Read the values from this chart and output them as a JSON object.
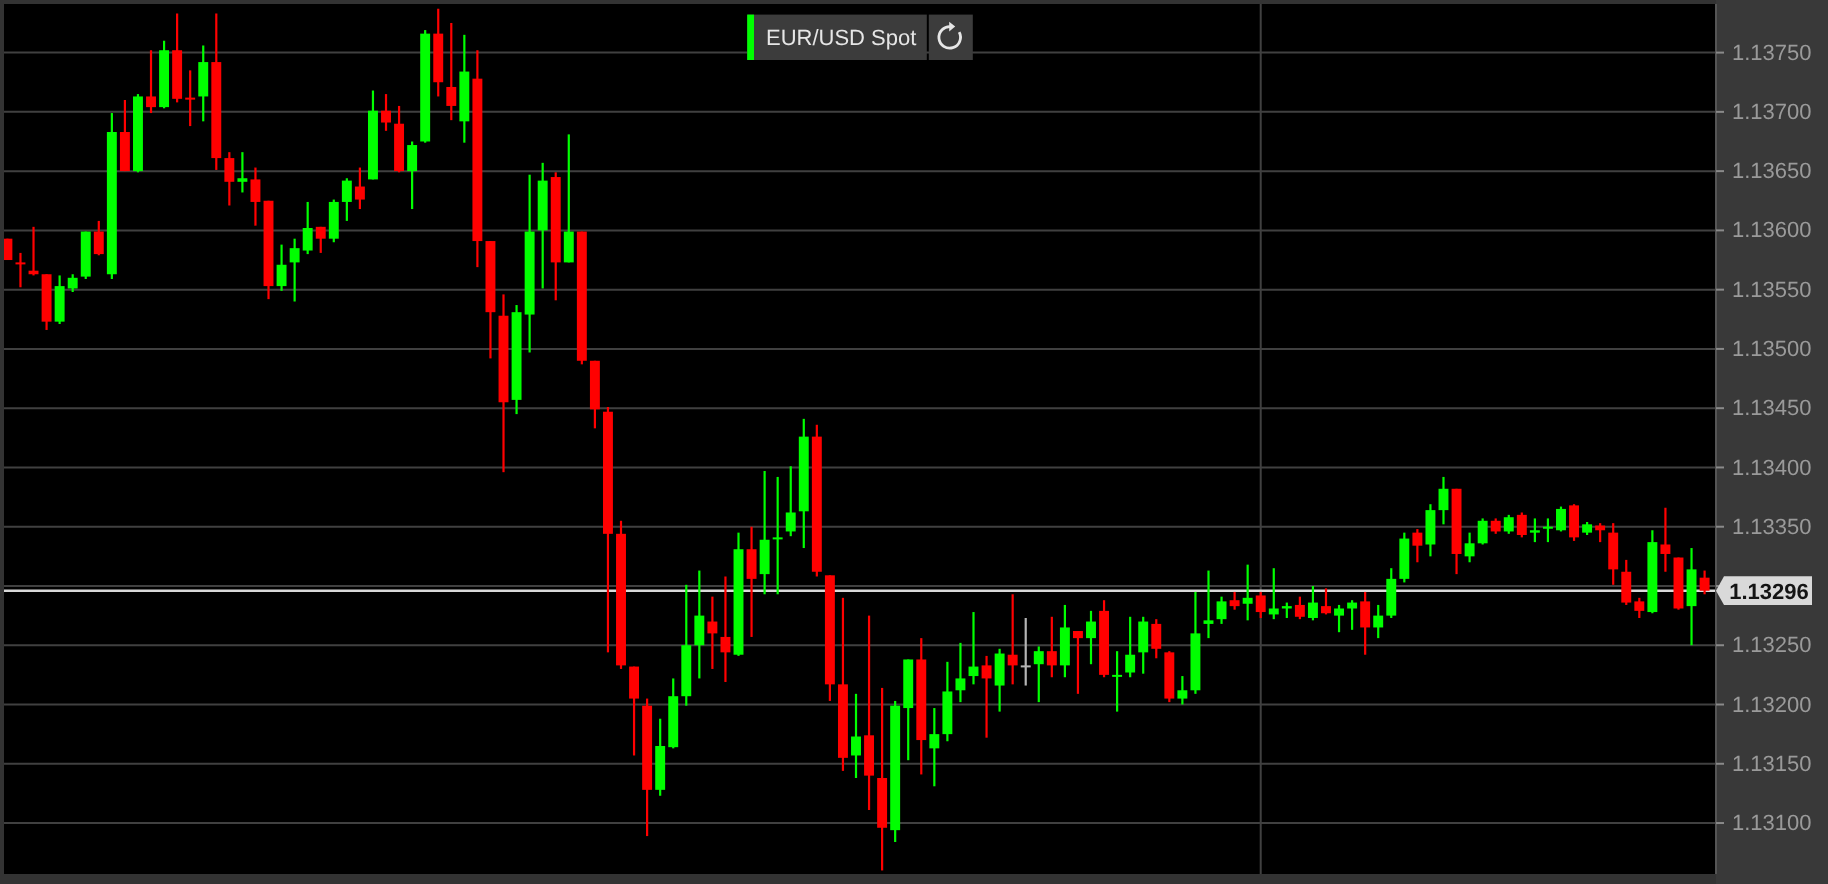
{
  "chart_data": {
    "type": "candlestick",
    "categories": [
      null,
      null,
      null,
      null,
      null,
      null,
      null,
      null,
      null,
      null,
      null,
      null,
      null,
      null,
      null,
      null,
      null,
      null,
      null,
      null,
      null,
      null,
      null,
      null,
      null,
      null,
      null,
      null,
      null,
      null,
      null,
      null,
      null,
      null,
      null,
      null,
      null,
      null,
      null,
      null,
      null,
      null,
      null,
      null,
      null,
      null,
      null,
      null,
      null,
      null,
      null,
      null,
      null,
      null,
      null,
      null,
      null,
      null,
      null,
      null,
      null,
      null,
      null,
      null,
      null,
      null,
      null,
      null,
      null,
      null,
      null,
      null,
      null,
      null,
      null,
      null,
      null,
      null,
      null,
      null,
      null,
      null,
      null,
      null,
      null,
      null,
      null,
      null,
      null,
      null,
      null,
      null,
      null,
      null,
      null,
      null,
      null,
      null,
      null,
      null,
      null,
      null,
      null,
      null,
      null,
      null,
      null,
      null,
      null,
      null,
      null,
      null,
      null,
      null,
      null,
      null,
      null,
      null,
      null,
      null,
      null,
      null,
      null,
      null,
      null,
      null,
      null,
      null,
      null,
      null,
      null
    ],
    "series": [
      {
        "name": "EUR/USD Spot",
        "color": "#00ff00",
        "ohlc": [
          [
            1.13593,
            1.13593,
            1.13575,
            1.13575
          ],
          [
            1.13573,
            1.13581,
            1.13552,
            1.13572
          ],
          [
            1.13566,
            1.13603,
            1.13562,
            1.13563
          ],
          [
            1.13563,
            1.13563,
            1.13516,
            1.13523
          ],
          [
            1.13523,
            1.13562,
            1.13521,
            1.13553
          ],
          [
            1.13551,
            1.13563,
            1.13548,
            1.1356
          ],
          [
            1.13561,
            1.13599,
            1.13559,
            1.13599
          ],
          [
            1.13599,
            1.13608,
            1.13579,
            1.1358
          ],
          [
            1.13563,
            1.13699,
            1.13559,
            1.13683
          ],
          [
            1.13683,
            1.1371,
            1.1365,
            1.1365
          ],
          [
            1.1365,
            1.13715,
            1.13649,
            1.13713
          ],
          [
            1.13713,
            1.13752,
            1.13699,
            1.13704
          ],
          [
            1.13704,
            1.1376,
            1.13703,
            1.13752
          ],
          [
            1.13752,
            1.13783,
            1.13708,
            1.13711
          ],
          [
            1.13712,
            1.13735,
            1.13688,
            1.13711
          ],
          [
            1.13713,
            1.13756,
            1.13692,
            1.13742
          ],
          [
            1.13742,
            1.13783,
            1.13651,
            1.13661
          ],
          [
            1.13661,
            1.13666,
            1.13621,
            1.13641
          ],
          [
            1.13641,
            1.13666,
            1.13632,
            1.13644
          ],
          [
            1.13643,
            1.13653,
            1.13604,
            1.13624
          ],
          [
            1.13625,
            1.13625,
            1.13542,
            1.13553
          ],
          [
            1.13553,
            1.13588,
            1.13549,
            1.13571
          ],
          [
            1.13573,
            1.13593,
            1.1354,
            1.13585
          ],
          [
            1.13583,
            1.13624,
            1.1358,
            1.13602
          ],
          [
            1.13603,
            1.13603,
            1.13581,
            1.13593
          ],
          [
            1.13593,
            1.13626,
            1.1359,
            1.13624
          ],
          [
            1.13624,
            1.13644,
            1.13608,
            1.13642
          ],
          [
            1.13637,
            1.13653,
            1.13618,
            1.13626
          ],
          [
            1.13643,
            1.13718,
            1.13643,
            1.13701
          ],
          [
            1.13701,
            1.13715,
            1.13684,
            1.13691
          ],
          [
            1.1369,
            1.13705,
            1.13649,
            1.1365
          ],
          [
            1.1365,
            1.13675,
            1.13618,
            1.13672
          ],
          [
            1.13675,
            1.13769,
            1.13674,
            1.13766
          ],
          [
            1.13766,
            1.13787,
            1.13713,
            1.13725
          ],
          [
            1.13721,
            1.13775,
            1.13693,
            1.13705
          ],
          [
            1.13692,
            1.13765,
            1.13674,
            1.13734
          ],
          [
            1.13728,
            1.13752,
            1.13569,
            1.13591
          ],
          [
            1.13591,
            1.13591,
            1.13492,
            1.13531
          ],
          [
            1.13528,
            1.13546,
            1.13396,
            1.13455
          ],
          [
            1.13457,
            1.13537,
            1.13445,
            1.13531
          ],
          [
            1.13529,
            1.13647,
            1.13497,
            1.13599
          ],
          [
            1.136,
            1.13657,
            1.13551,
            1.13642
          ],
          [
            1.13645,
            1.13649,
            1.13541,
            1.13573
          ],
          [
            1.13573,
            1.13681,
            1.13573,
            1.13599
          ],
          [
            1.13599,
            1.13599,
            1.13487,
            1.1349
          ],
          [
            1.1349,
            1.1349,
            1.13433,
            1.13449
          ],
          [
            1.13447,
            1.13451,
            1.13244,
            1.13344
          ],
          [
            1.13344,
            1.13355,
            1.1323,
            1.13233
          ],
          [
            1.13232,
            1.13232,
            1.13157,
            1.13205
          ],
          [
            1.13199,
            1.13205,
            1.13089,
            1.13128
          ],
          [
            1.13128,
            1.13188,
            1.13123,
            1.13165
          ],
          [
            1.13164,
            1.13222,
            1.13163,
            1.13207
          ],
          [
            1.13207,
            1.13301,
            1.13199,
            1.1325
          ],
          [
            1.1325,
            1.13313,
            1.13222,
            1.13275
          ],
          [
            1.1327,
            1.13291,
            1.1323,
            1.1326
          ],
          [
            1.13257,
            1.13308,
            1.13219,
            1.13244
          ],
          [
            1.13242,
            1.13345,
            1.13241,
            1.13331
          ],
          [
            1.13331,
            1.1335,
            1.13257,
            1.13306
          ],
          [
            1.1331,
            1.13397,
            1.13293,
            1.13339
          ],
          [
            1.1334,
            1.13392,
            1.13293,
            1.13341
          ],
          [
            1.13346,
            1.13401,
            1.13342,
            1.13362
          ],
          [
            1.13363,
            1.13441,
            1.13332,
            1.13426
          ],
          [
            1.13426,
            1.13436,
            1.13308,
            1.13312
          ],
          [
            1.13309,
            1.13309,
            1.13203,
            1.13217
          ],
          [
            1.13217,
            1.1329,
            1.13144,
            1.13155
          ],
          [
            1.13157,
            1.13209,
            1.13138,
            1.13173
          ],
          [
            1.13174,
            1.13275,
            1.13111,
            1.1314
          ],
          [
            1.13138,
            1.13214,
            1.1306,
            1.13096
          ],
          [
            1.13094,
            1.13203,
            1.13084,
            1.13199
          ],
          [
            1.13197,
            1.13238,
            1.13153,
            1.13238
          ],
          [
            1.13238,
            1.13256,
            1.13141,
            1.1317
          ],
          [
            1.13163,
            1.13197,
            1.13131,
            1.13175
          ],
          [
            1.13175,
            1.13236,
            1.13169,
            1.13211
          ],
          [
            1.13212,
            1.13252,
            1.13202,
            1.13222
          ],
          [
            1.13224,
            1.13278,
            1.13217,
            1.13232
          ],
          [
            1.13233,
            1.13241,
            1.13172,
            1.13222
          ],
          [
            1.13216,
            1.13247,
            1.13194,
            1.13243
          ],
          [
            1.13242,
            1.13293,
            1.13217,
            1.13233
          ],
          [
            1.13233,
            1.13273,
            1.13216,
            1.13233
          ],
          [
            1.13234,
            1.13249,
            1.13202,
            1.13245
          ],
          [
            1.13245,
            1.13274,
            1.13223,
            1.13233
          ],
          [
            1.13233,
            1.13284,
            1.13223,
            1.13265
          ],
          [
            1.13262,
            1.13262,
            1.13209,
            1.13256
          ],
          [
            1.13256,
            1.13279,
            1.13234,
            1.1327
          ],
          [
            1.13279,
            1.13288,
            1.13223,
            1.13225
          ],
          [
            1.13224,
            1.13245,
            1.13194,
            1.13225
          ],
          [
            1.13227,
            1.13274,
            1.13223,
            1.13242
          ],
          [
            1.13244,
            1.13274,
            1.13226,
            1.1327
          ],
          [
            1.13268,
            1.13272,
            1.13239,
            1.13247
          ],
          [
            1.13244,
            1.13245,
            1.13202,
            1.13205
          ],
          [
            1.13205,
            1.13224,
            1.132,
            1.13212
          ],
          [
            1.13212,
            1.13295,
            1.13209,
            1.1326
          ],
          [
            1.13268,
            1.13313,
            1.13256,
            1.13271
          ],
          [
            1.13272,
            1.13291,
            1.13268,
            1.13287
          ],
          [
            1.13288,
            1.13295,
            1.1328,
            1.13283
          ],
          [
            1.13285,
            1.13318,
            1.13271,
            1.1329
          ],
          [
            1.13292,
            1.13295,
            1.13273,
            1.13278
          ],
          [
            1.13276,
            1.13315,
            1.13272,
            1.13281
          ],
          [
            1.13281,
            1.13286,
            1.13273,
            1.13283
          ],
          [
            1.13284,
            1.13291,
            1.13272,
            1.13274
          ],
          [
            1.13273,
            1.133,
            1.13271,
            1.13286
          ],
          [
            1.13283,
            1.13298,
            1.13276,
            1.13277
          ],
          [
            1.13275,
            1.13284,
            1.13261,
            1.13281
          ],
          [
            1.13281,
            1.13288,
            1.13263,
            1.13286
          ],
          [
            1.13287,
            1.13295,
            1.13242,
            1.13265
          ],
          [
            1.13265,
            1.13284,
            1.13256,
            1.13275
          ],
          [
            1.13275,
            1.13315,
            1.13273,
            1.13306
          ],
          [
            1.13306,
            1.13345,
            1.13303,
            1.1334
          ],
          [
            1.13345,
            1.13348,
            1.1332,
            1.13334
          ],
          [
            1.13335,
            1.13369,
            1.13325,
            1.13364
          ],
          [
            1.13364,
            1.13392,
            1.13352,
            1.13382
          ],
          [
            1.13382,
            1.13382,
            1.1331,
            1.13327
          ],
          [
            1.13325,
            1.13345,
            1.1332,
            1.13336
          ],
          [
            1.13336,
            1.13357,
            1.13335,
            1.13355
          ],
          [
            1.13355,
            1.13357,
            1.13344,
            1.13346
          ],
          [
            1.13346,
            1.1336,
            1.13344,
            1.13358
          ],
          [
            1.1336,
            1.13362,
            1.13341,
            1.13343
          ],
          [
            1.13345,
            1.13357,
            1.13337,
            1.13347
          ],
          [
            1.13349,
            1.13357,
            1.13337,
            1.1335
          ],
          [
            1.13347,
            1.13367,
            1.13346,
            1.13365
          ],
          [
            1.13368,
            1.13369,
            1.13338,
            1.13341
          ],
          [
            1.13345,
            1.13354,
            1.13343,
            1.13352
          ],
          [
            1.13351,
            1.13353,
            1.13337,
            1.13347
          ],
          [
            1.13345,
            1.13353,
            1.13301,
            1.13314
          ],
          [
            1.13312,
            1.13322,
            1.13284,
            1.13286
          ],
          [
            1.13287,
            1.1329,
            1.13273,
            1.13279
          ],
          [
            1.13278,
            1.13347,
            1.13277,
            1.13337
          ],
          [
            1.13335,
            1.13366,
            1.13312,
            1.13327
          ],
          [
            1.13324,
            1.13324,
            1.1328,
            1.13281
          ],
          [
            1.13283,
            1.13332,
            1.1325,
            1.13314
          ],
          [
            1.13307,
            1.13313,
            1.13293,
            1.13296
          ]
        ],
        "colors": [
          "#ff0000",
          "#ff0000",
          "#ff0000",
          "#ff0000",
          "#00ff00",
          "#00ff00",
          "#00ff00",
          "#ff0000",
          "#00ff00",
          "#ff0000",
          "#00ff00",
          "#ff0000",
          "#00ff00",
          "#ff0000",
          "#ff0000",
          "#00ff00",
          "#ff0000",
          "#ff0000",
          "#00ff00",
          "#ff0000",
          "#ff0000",
          "#00ff00",
          "#00ff00",
          "#00ff00",
          "#ff0000",
          "#00ff00",
          "#00ff00",
          "#ff0000",
          "#00ff00",
          "#ff0000",
          "#ff0000",
          "#00ff00",
          "#00ff00",
          "#ff0000",
          "#ff0000",
          "#00ff00",
          "#ff0000",
          "#ff0000",
          "#ff0000",
          "#00ff00",
          "#00ff00",
          "#00ff00",
          "#ff0000",
          "#00ff00",
          "#ff0000",
          "#ff0000",
          "#ff0000",
          "#ff0000",
          "#ff0000",
          "#ff0000",
          "#00ff00",
          "#00ff00",
          "#00ff00",
          "#00ff00",
          "#ff0000",
          "#ff0000",
          "#00ff00",
          "#ff0000",
          "#00ff00",
          "#00ff00",
          "#00ff00",
          "#00ff00",
          "#ff0000",
          "#ff0000",
          "#ff0000",
          "#00ff00",
          "#ff0000",
          "#ff0000",
          "#00ff00",
          "#00ff00",
          "#ff0000",
          "#00ff00",
          "#00ff00",
          "#00ff00",
          "#00ff00",
          "#ff0000",
          "#00ff00",
          "#ff0000",
          "#b4b4b4",
          "#00ff00",
          "#ff0000",
          "#00ff00",
          "#ff0000",
          "#00ff00",
          "#ff0000",
          "#00ff00",
          "#00ff00",
          "#00ff00",
          "#ff0000",
          "#ff0000",
          "#00ff00",
          "#00ff00",
          "#00ff00",
          "#00ff00",
          "#ff0000",
          "#00ff00",
          "#ff0000",
          "#00ff00",
          "#00ff00",
          "#ff0000",
          "#00ff00",
          "#ff0000",
          "#00ff00",
          "#00ff00",
          "#ff0000",
          "#00ff00",
          "#00ff00",
          "#00ff00",
          "#ff0000",
          "#00ff00",
          "#00ff00",
          "#ff0000",
          "#00ff00",
          "#00ff00",
          "#ff0000",
          "#00ff00",
          "#ff0000",
          "#00ff00",
          "#00ff00",
          "#00ff00",
          "#ff0000",
          "#00ff00",
          "#ff0000",
          "#ff0000",
          "#ff0000",
          "#ff0000",
          "#00ff00",
          "#ff0000",
          "#ff0000",
          "#00ff00",
          "#ff0000"
        ]
      }
    ],
    "ylim": [
      1.13057,
      1.13791
    ],
    "yticks": [
      {
        "value": 1.131,
        "label": "1.13100"
      },
      {
        "value": 1.1315,
        "label": "1.13150"
      },
      {
        "value": 1.132,
        "label": "1.13200"
      },
      {
        "value": 1.1325,
        "label": "1.13250"
      },
      {
        "value": 1.133,
        "label": null
      },
      {
        "value": 1.1335,
        "label": "1.13350"
      },
      {
        "value": 1.134,
        "label": "1.13400"
      },
      {
        "value": 1.1345,
        "label": "1.13450"
      },
      {
        "value": 1.135,
        "label": "1.13500"
      },
      {
        "value": 1.1355,
        "label": "1.13550"
      },
      {
        "value": 1.136,
        "label": "1.13600"
      },
      {
        "value": 1.1365,
        "label": "1.13650"
      },
      {
        "value": 1.137,
        "label": "1.13700"
      },
      {
        "value": 1.1375,
        "label": "1.13750"
      }
    ],
    "grid": "y",
    "tick_labels": "y",
    "legend": "top",
    "ref_lines": [
      {
        "axis": "y",
        "value": 1.13296,
        "label": "1.13296",
        "color": "#d9d9d9"
      }
    ]
  }
}
